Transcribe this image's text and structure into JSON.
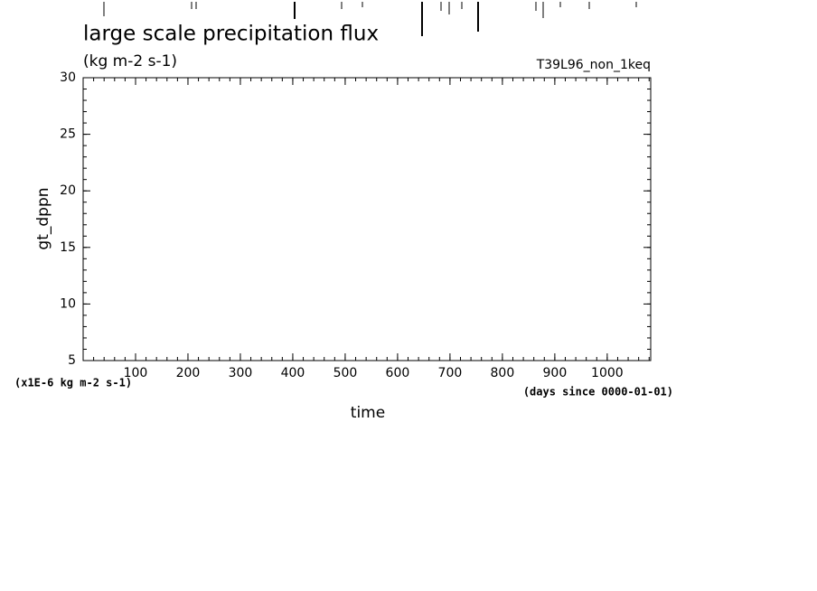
{
  "chart_data": {
    "type": "line",
    "title": "large scale precipitation flux",
    "subtitle": "(kg m-2 s-1)",
    "run_label": "T39L96_non_1keq",
    "y_label": "gt_dppn",
    "y_unit": "(x1E-6 kg m-2 s-1)",
    "x_label": "time",
    "x_unit": "(days since 0000-01-01)",
    "xlim": [
      0,
      1083
    ],
    "xticks": [
      100,
      200,
      300,
      400,
      500,
      600,
      700,
      800,
      900,
      1000
    ],
    "ylim": [
      5,
      30
    ],
    "yticks": [
      5,
      10,
      15,
      20,
      25,
      30
    ],
    "series": [],
    "grid": false
  }
}
